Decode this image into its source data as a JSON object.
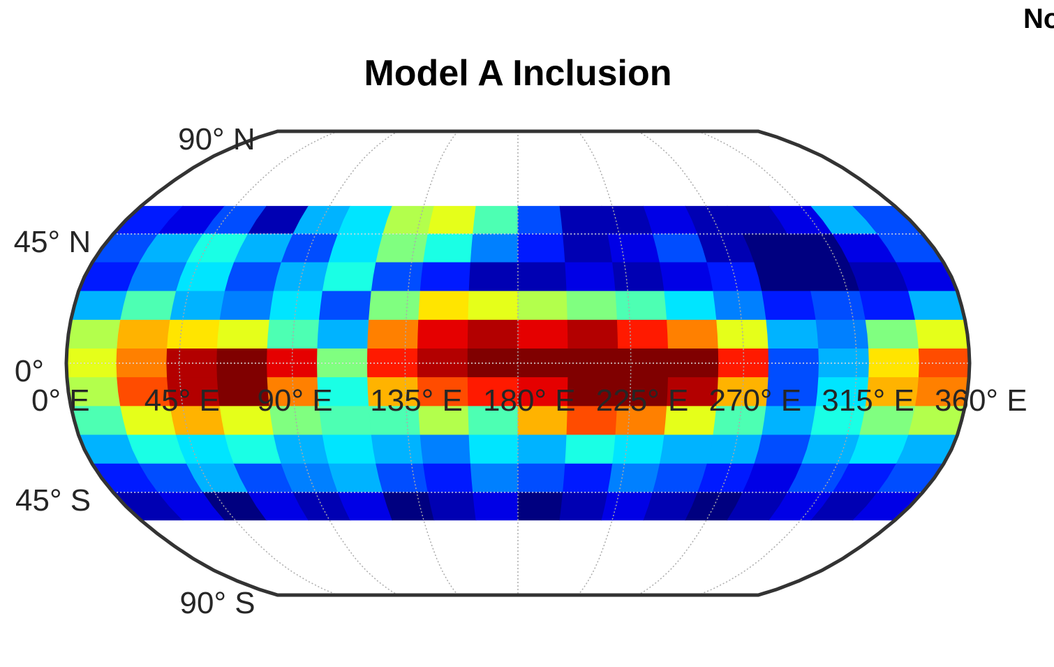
{
  "chart_data": {
    "type": "heatmap",
    "title": "Model A Inclusion",
    "corner_text": "No",
    "colormap": "jet",
    "grid": true,
    "x": [
      10,
      30,
      50,
      70,
      90,
      110,
      130,
      150,
      170,
      190,
      210,
      230,
      250,
      270,
      290,
      310,
      330,
      350
    ],
    "y": [
      50,
      40,
      30,
      20,
      10,
      0,
      -10,
      -20,
      -30,
      -40,
      -50
    ],
    "values": [
      [
        0.15,
        0.1,
        0.2,
        0.05,
        0.3,
        0.35,
        0.55,
        0.6,
        0.45,
        0.2,
        0.05,
        0.05,
        0.1,
        0.05,
        0.05,
        0.1,
        0.3,
        0.2
      ],
      [
        0.2,
        0.3,
        0.4,
        0.3,
        0.2,
        0.35,
        0.5,
        0.4,
        0.25,
        0.15,
        0.05,
        0.1,
        0.2,
        0.05,
        0.0,
        0.0,
        0.1,
        0.2
      ],
      [
        0.15,
        0.25,
        0.35,
        0.2,
        0.3,
        0.4,
        0.2,
        0.15,
        0.05,
        0.05,
        0.1,
        0.05,
        0.1,
        0.15,
        0.0,
        0.0,
        0.05,
        0.1
      ],
      [
        0.3,
        0.45,
        0.3,
        0.25,
        0.35,
        0.2,
        0.5,
        0.65,
        0.6,
        0.55,
        0.5,
        0.45,
        0.35,
        0.25,
        0.15,
        0.2,
        0.15,
        0.3
      ],
      [
        0.55,
        0.7,
        0.65,
        0.6,
        0.45,
        0.3,
        0.75,
        0.9,
        0.95,
        0.9,
        0.95,
        0.85,
        0.75,
        0.6,
        0.3,
        0.25,
        0.5,
        0.6
      ],
      [
        0.6,
        0.75,
        0.95,
        1.0,
        0.9,
        0.5,
        0.85,
        0.95,
        1.0,
        1.0,
        1.0,
        1.0,
        1.0,
        0.85,
        0.2,
        0.3,
        0.65,
        0.8
      ],
      [
        0.55,
        0.8,
        0.95,
        1.0,
        0.75,
        0.4,
        0.7,
        0.8,
        0.85,
        0.9,
        1.0,
        1.0,
        0.95,
        0.7,
        0.2,
        0.35,
        0.7,
        0.75
      ],
      [
        0.45,
        0.6,
        0.7,
        0.6,
        0.5,
        0.45,
        0.45,
        0.55,
        0.45,
        0.7,
        0.8,
        0.75,
        0.6,
        0.45,
        0.3,
        0.4,
        0.5,
        0.55
      ],
      [
        0.3,
        0.4,
        0.35,
        0.4,
        0.3,
        0.35,
        0.3,
        0.25,
        0.35,
        0.3,
        0.4,
        0.35,
        0.3,
        0.3,
        0.2,
        0.3,
        0.35,
        0.3
      ],
      [
        0.15,
        0.2,
        0.3,
        0.2,
        0.25,
        0.3,
        0.2,
        0.15,
        0.25,
        0.2,
        0.15,
        0.25,
        0.2,
        0.15,
        0.1,
        0.2,
        0.15,
        0.2
      ],
      [
        0.05,
        0.1,
        0.0,
        0.1,
        0.05,
        0.1,
        0.0,
        0.05,
        0.1,
        0.0,
        0.05,
        0.1,
        0.05,
        0.0,
        0.05,
        0.1,
        0.05,
        0.1
      ]
    ],
    "xlim": [
      0,
      360
    ],
    "ylim": [
      -90,
      90
    ],
    "xticks": [
      {
        "value": 0,
        "label": "0° E"
      },
      {
        "value": 45,
        "label": "45° E"
      },
      {
        "value": 90,
        "label": "90° E"
      },
      {
        "value": 135,
        "label": "135° E"
      },
      {
        "value": 180,
        "label": "180° E"
      },
      {
        "value": 225,
        "label": "225° E"
      },
      {
        "value": 270,
        "label": "270° E"
      },
      {
        "value": 315,
        "label": "315° E"
      },
      {
        "value": 360,
        "label": "360° E"
      }
    ],
    "yticks": [
      {
        "value": 90,
        "label": "90° N"
      },
      {
        "value": 45,
        "label": "45° N"
      },
      {
        "value": 0,
        "label": "0°"
      },
      {
        "value": -45,
        "label": "45° S"
      },
      {
        "value": -90,
        "label": "90° S"
      }
    ]
  }
}
